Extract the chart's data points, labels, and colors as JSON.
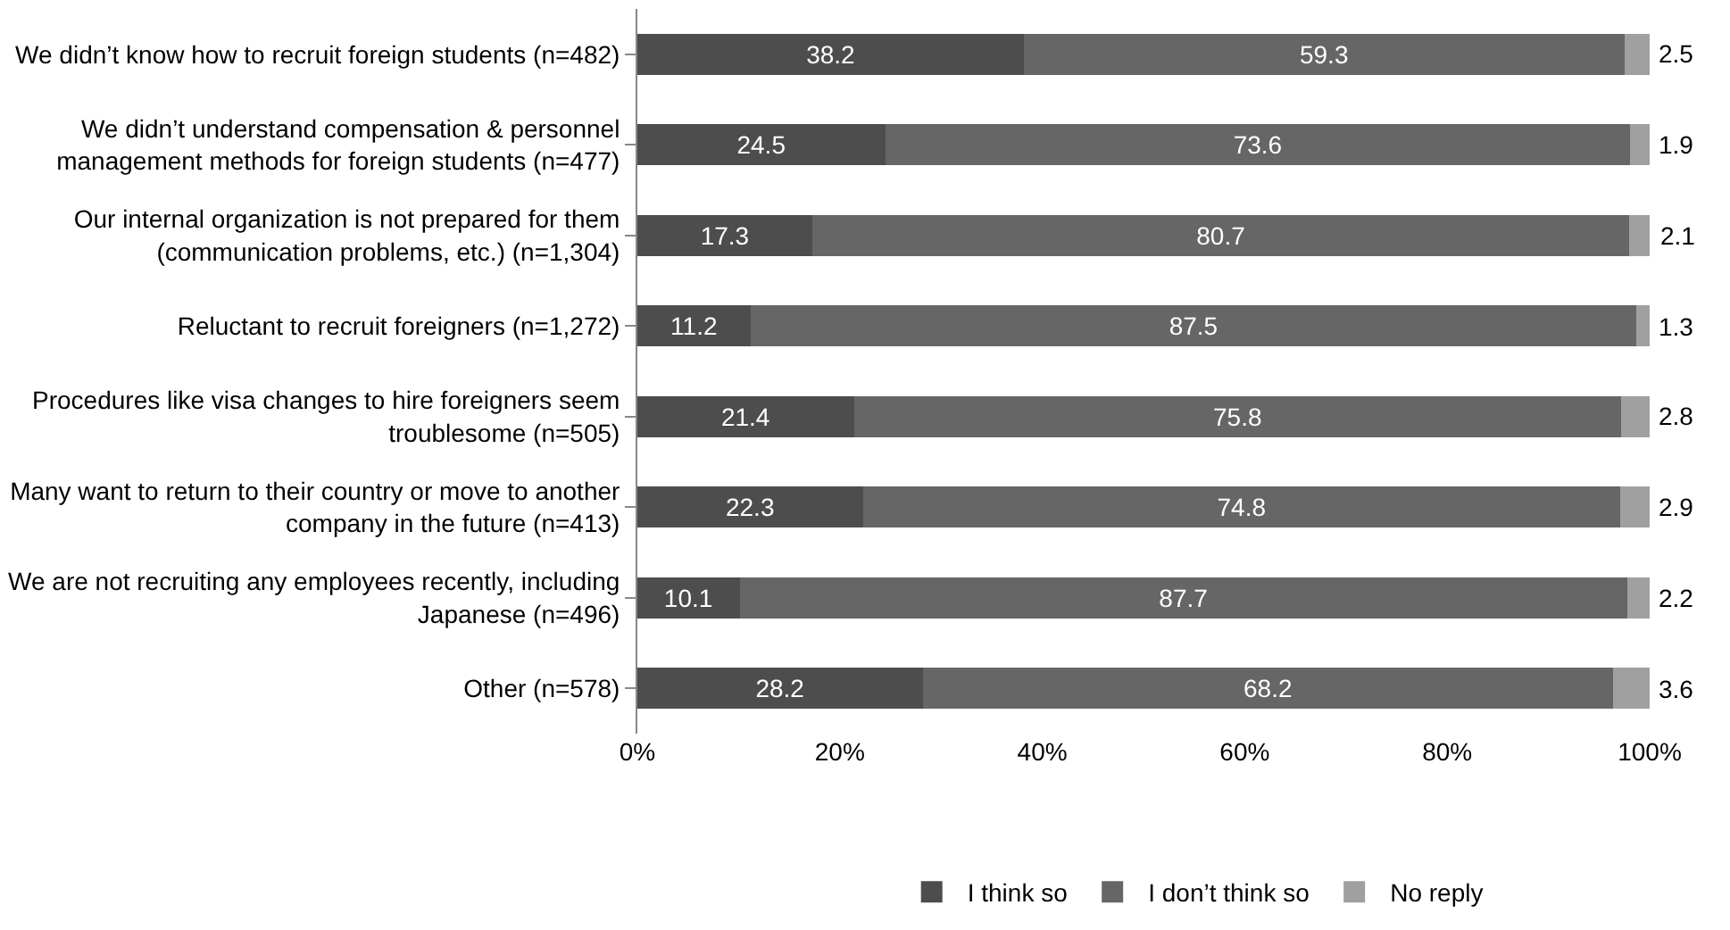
{
  "chart_data": {
    "type": "bar",
    "orientation": "horizontal",
    "stacked": true,
    "categories": [
      "We didn’t know how to recruit foreign students (n=482)",
      "We didn’t understand compensation & personnel management methods for foreign students (n=477)",
      "Our internal organization is not prepared for them (communication problems, etc.) (n=1,304)",
      "Reluctant to recruit foreigners (n=1,272)",
      "Procedures like visa changes to hire foreigners seem troublesome (n=505)",
      "Many want to return to their country or move to another company in the future (n=413)",
      "We are not recruiting any employees recently, including Japanese (n=496)",
      "Other (n=578)"
    ],
    "series": [
      {
        "name": "I think so",
        "color": "#4d4d4d",
        "values": [
          38.2,
          24.5,
          17.3,
          11.2,
          21.4,
          22.3,
          10.1,
          28.2
        ]
      },
      {
        "name": "I don’t think so",
        "color": "#666666",
        "values": [
          59.3,
          73.6,
          80.7,
          87.5,
          75.8,
          74.8,
          87.7,
          68.2
        ]
      },
      {
        "name": "No reply",
        "color": "#a0a0a0",
        "values": [
          2.5,
          1.9,
          2.1,
          1.3,
          2.8,
          2.9,
          2.2,
          3.6
        ]
      }
    ],
    "xlim": [
      0,
      100
    ],
    "xticks": [
      {
        "value": 0,
        "label": "0%"
      },
      {
        "value": 20,
        "label": "20%"
      },
      {
        "value": 40,
        "label": "40%"
      },
      {
        "value": 60,
        "label": "60%"
      },
      {
        "value": 80,
        "label": "80%"
      },
      {
        "value": 100,
        "label": "100%"
      }
    ],
    "data_labels": true,
    "legend": "bottom"
  }
}
